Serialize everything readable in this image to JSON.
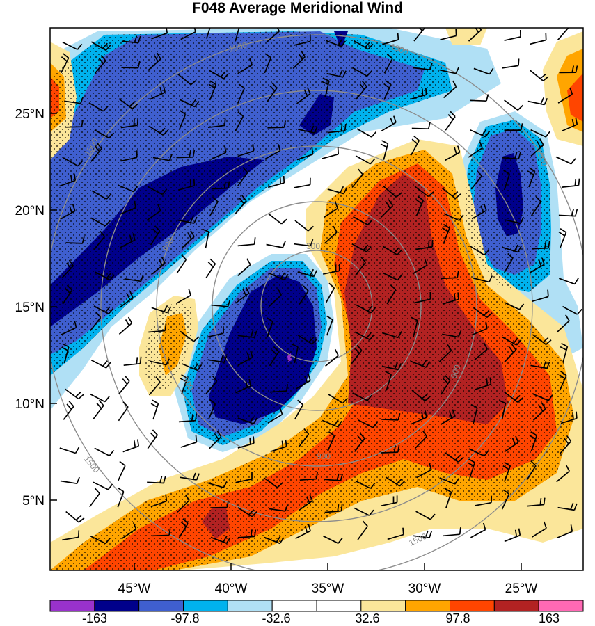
{
  "title": "F048 Average Meridional Wind",
  "map": {
    "lat_labels": [
      "25°N",
      "20°N",
      "15°N",
      "10°N",
      "5°N"
    ],
    "lon_labels": [
      "45°W",
      "40°W",
      "35°W",
      "30°W",
      "25°W"
    ],
    "range_ring_labels": [
      "300",
      "900",
      "900",
      "900",
      "900",
      "1500",
      "1500",
      "1500",
      "1500",
      "1500",
      "1500"
    ],
    "stippling": "dotted where |v| exceeds threshold",
    "colors": {
      "lvl_m163": "#9932cc",
      "lvl_m130": "#00008b",
      "lvl_m97": "#3f5fcf",
      "lvl_m65": "#00b2ee",
      "lvl_m32": "#b0e0f5",
      "lvl_0": "#ffffff",
      "lvl_p32": "#fbe69a",
      "lvl_p65": "#ffa500",
      "lvl_p97": "#ff4500",
      "lvl_p130": "#b22222",
      "lvl_p163": "#ff69b4"
    }
  },
  "colorbar": {
    "colors": [
      "#9932cc",
      "#00008b",
      "#3f5fcf",
      "#00b2ee",
      "#b0e0f5",
      "#ffffff",
      "#ffffff",
      "#fbe69a",
      "#ffa500",
      "#ff4500",
      "#b22222",
      "#ff69b4"
    ],
    "labels": [
      "-163",
      "-97.8",
      "-32.6",
      "32.6",
      "97.8",
      "163"
    ]
  }
}
